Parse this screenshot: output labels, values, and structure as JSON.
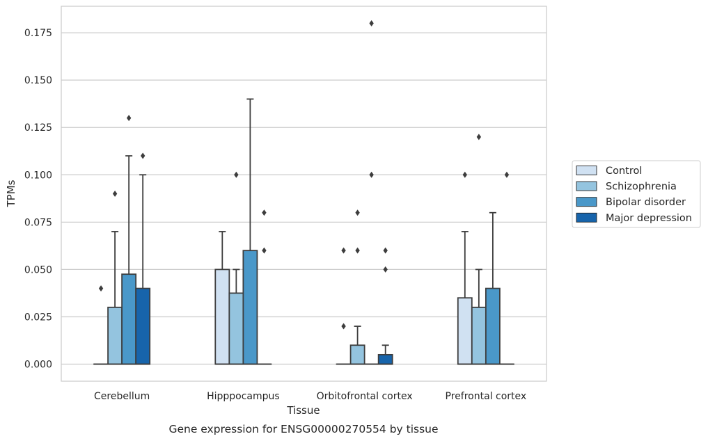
{
  "chart_data": {
    "type": "box",
    "xlabel": "Tissue",
    "ylabel": "TPMs",
    "caption": "Gene expression for ENSG00000270554 by tissue",
    "categories": [
      "Cerebellum",
      "Hipppocampus",
      "Orbitofrontal cortex",
      "Prefrontal cortex"
    ],
    "ylim": [
      -0.009,
      0.189
    ],
    "yticks": [
      0.0,
      0.025,
      0.05,
      0.075,
      0.1,
      0.125,
      0.15,
      0.175
    ],
    "ytick_labels": [
      "0.000",
      "0.025",
      "0.050",
      "0.075",
      "0.100",
      "0.125",
      "0.150",
      "0.175"
    ],
    "grid": true,
    "legend": {
      "position": "right",
      "title": ""
    },
    "series": [
      {
        "name": "Control",
        "color": "#d0e1f2",
        "boxes": [
          {
            "q1": 0.0,
            "median": 0.0,
            "q3": 0.0,
            "whisker_low": 0.0,
            "whisker_high": 0.0,
            "outliers": [
              0.04
            ]
          },
          {
            "q1": 0.0,
            "median": 0.0,
            "q3": 0.05,
            "whisker_low": 0.0,
            "whisker_high": 0.07,
            "outliers": []
          },
          {
            "q1": 0.0,
            "median": 0.0,
            "q3": 0.0,
            "whisker_low": 0.0,
            "whisker_high": 0.0,
            "outliers": [
              0.02,
              0.06
            ]
          },
          {
            "q1": 0.0,
            "median": 0.0,
            "q3": 0.035,
            "whisker_low": 0.0,
            "whisker_high": 0.07,
            "outliers": [
              0.1
            ]
          }
        ]
      },
      {
        "name": "Schizophrenia",
        "color": "#94c4df",
        "boxes": [
          {
            "q1": 0.0,
            "median": 0.0,
            "q3": 0.03,
            "whisker_low": 0.0,
            "whisker_high": 0.07,
            "outliers": [
              0.09
            ]
          },
          {
            "q1": 0.0,
            "median": 0.0,
            "q3": 0.0375,
            "whisker_low": 0.0,
            "whisker_high": 0.05,
            "outliers": [
              0.1
            ]
          },
          {
            "q1": 0.0,
            "median": 0.0,
            "q3": 0.01,
            "whisker_low": 0.0,
            "whisker_high": 0.02,
            "outliers": [
              0.06,
              0.08
            ]
          },
          {
            "q1": 0.0,
            "median": 0.0,
            "q3": 0.03,
            "whisker_low": 0.0,
            "whisker_high": 0.05,
            "outliers": [
              0.12
            ]
          }
        ]
      },
      {
        "name": "Bipolar disorder",
        "color": "#4a98c9",
        "boxes": [
          {
            "q1": 0.0,
            "median": 0.0,
            "q3": 0.0475,
            "whisker_low": 0.0,
            "whisker_high": 0.11,
            "outliers": [
              0.13
            ]
          },
          {
            "q1": 0.0,
            "median": 0.0,
            "q3": 0.06,
            "whisker_low": 0.0,
            "whisker_high": 0.14,
            "outliers": []
          },
          {
            "q1": 0.0,
            "median": 0.0,
            "q3": 0.0,
            "whisker_low": 0.0,
            "whisker_high": 0.0,
            "outliers": [
              0.1,
              0.18
            ]
          },
          {
            "q1": 0.0,
            "median": 0.0,
            "q3": 0.04,
            "whisker_low": 0.0,
            "whisker_high": 0.08,
            "outliers": []
          }
        ]
      },
      {
        "name": "Major depression",
        "color": "#1764ab",
        "boxes": [
          {
            "q1": 0.0,
            "median": 0.0,
            "q3": 0.04,
            "whisker_low": 0.0,
            "whisker_high": 0.1,
            "outliers": [
              0.11
            ]
          },
          {
            "q1": 0.0,
            "median": 0.0,
            "q3": 0.0,
            "whisker_low": 0.0,
            "whisker_high": 0.0,
            "outliers": [
              0.06,
              0.08
            ]
          },
          {
            "q1": 0.0,
            "median": 0.0,
            "q3": 0.005,
            "whisker_low": 0.0,
            "whisker_high": 0.01,
            "outliers": [
              0.05,
              0.06
            ]
          },
          {
            "q1": 0.0,
            "median": 0.0,
            "q3": 0.0,
            "whisker_low": 0.0,
            "whisker_high": 0.0,
            "outliers": [
              0.1
            ]
          }
        ]
      }
    ]
  }
}
